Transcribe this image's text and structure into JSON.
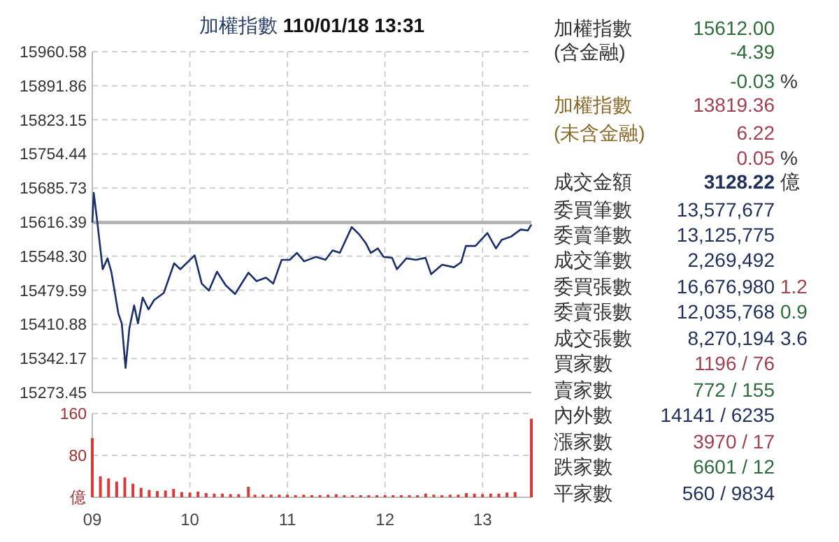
{
  "chart_data": [
    {
      "type": "line",
      "title": "加權指數 110/01/18 13:31",
      "series": [
        {
          "color": "#1b2f6b",
          "x": [
            9.0,
            9.015,
            9.049,
            9.107,
            9.156,
            9.195,
            9.268,
            9.302,
            9.341,
            9.38,
            9.429,
            9.468,
            9.517,
            9.576,
            9.634,
            9.732,
            9.839,
            9.902,
            10.049,
            10.122,
            10.195,
            10.278,
            10.366,
            10.463,
            10.6,
            10.683,
            10.78,
            10.854,
            10.941,
            11.024,
            11.098,
            11.171,
            11.293,
            11.39,
            11.463,
            11.537,
            11.659,
            11.732,
            11.805,
            11.854,
            11.927,
            11.985,
            12.073,
            12.122,
            12.22,
            12.317,
            12.415,
            12.473,
            12.585,
            12.707,
            12.78,
            12.829,
            12.927,
            13.049,
            13.137,
            13.195,
            13.293,
            13.39,
            13.463,
            13.5
          ],
          "values": [
            15616,
            15676,
            15621,
            15522,
            15544,
            15517,
            15432,
            15413,
            15323,
            15403,
            15449,
            15413,
            15465,
            15441,
            15460,
            15474,
            15534,
            15522,
            15550,
            15493,
            15479,
            15517,
            15490,
            15472,
            15515,
            15498,
            15505,
            15493,
            15541,
            15541,
            15555,
            15538,
            15547,
            15541,
            15560,
            15555,
            15607,
            15593,
            15574,
            15555,
            15564,
            15547,
            15545,
            15522,
            15544,
            15541,
            15545,
            15512,
            15531,
            15526,
            15536,
            15569,
            15569,
            15595,
            15564,
            15581,
            15588,
            15602,
            15600,
            15612
          ]
        }
      ],
      "xlim": [
        9,
        13.5
      ],
      "xticks": [
        9,
        10,
        11,
        12,
        13
      ],
      "ylim": [
        15273.45,
        15960.58
      ],
      "yticks": [
        15273.45,
        15342.17,
        15410.88,
        15479.59,
        {
          "value": 15548.3,
          "label": "15548.30"
        },
        15616.39,
        15685.73,
        15754.44,
        15823.15,
        15891.86,
        15960.58
      ],
      "ref_lines": [
        {
          "axis": "y",
          "value": 15616.39,
          "color": "#b4b4b4"
        }
      ],
      "grid": true,
      "tick_labels": "y"
    },
    {
      "type": "bar",
      "series": [
        {
          "color": "#d83a3a",
          "x": [
            9.0,
            9.0833,
            9.1667,
            9.25,
            9.3333,
            9.4167,
            9.5,
            9.5833,
            9.6667,
            9.75,
            9.8333,
            9.9167,
            10.0,
            10.0833,
            10.1667,
            10.25,
            10.3333,
            10.4167,
            10.5,
            10.6,
            10.6667,
            10.75,
            10.8333,
            10.9167,
            11.0,
            11.0833,
            11.1667,
            11.25,
            11.3333,
            11.4167,
            11.5,
            11.5833,
            11.6667,
            11.75,
            11.8333,
            11.9167,
            12.0,
            12.0833,
            12.1667,
            12.25,
            12.3333,
            12.4167,
            12.5,
            12.5833,
            12.6667,
            12.75,
            12.8333,
            12.9167,
            13.0,
            13.0833,
            13.1667,
            13.25,
            13.3333,
            13.5
          ],
          "values": [
            113,
            40,
            36,
            30,
            38,
            26,
            18,
            14,
            12,
            13,
            16,
            10,
            9,
            11,
            8,
            7,
            7,
            6,
            6,
            20,
            5,
            5,
            5,
            5,
            5,
            4,
            5,
            4,
            4,
            5,
            6,
            4,
            4,
            4,
            4,
            4,
            4,
            4,
            4,
            4,
            4,
            7,
            5,
            4,
            5,
            5,
            8,
            7,
            6,
            7,
            7,
            9,
            10,
            150
          ]
        }
      ],
      "xlim": [
        9,
        13.5
      ],
      "xticks": [
        {
          "value": 9,
          "label": "09"
        },
        {
          "value": 10,
          "label": "10"
        },
        {
          "value": 11,
          "label": "11"
        },
        {
          "value": 12,
          "label": "12"
        },
        {
          "value": 13,
          "label": "13"
        }
      ],
      "ylim": [
        0,
        160
      ],
      "yticks": [
        {
          "value": 0,
          "label": "億"
        },
        80,
        160
      ],
      "grid": true
    },
    {
      "type": "other",
      "annotations": [
        "加權指數",
        "15612.00",
        "(含金融)",
        "-4.39",
        "-0.03",
        "%",
        "加權指數",
        "13819.36",
        "(未含金融)",
        "6.22",
        "0.05",
        "%",
        "成交金額",
        "3128.22",
        "億",
        "委買筆數",
        "13,577,677",
        "委賣筆數",
        "13,125,775",
        "成交筆數",
        "2,269,492",
        "委買張數",
        "16,676,980",
        "1.2",
        "委賣張數",
        "12,035,768",
        "0.9",
        "成交張數",
        "8,270,194",
        "3.6",
        "買家數",
        "1196 / 76",
        "賣家數",
        "772 / 155",
        "內外數",
        "14141 / 6235",
        "漲家數",
        "3970 / 17",
        "跌家數",
        "6601 / 12",
        "平家數",
        "560 / 9834"
      ]
    }
  ]
}
